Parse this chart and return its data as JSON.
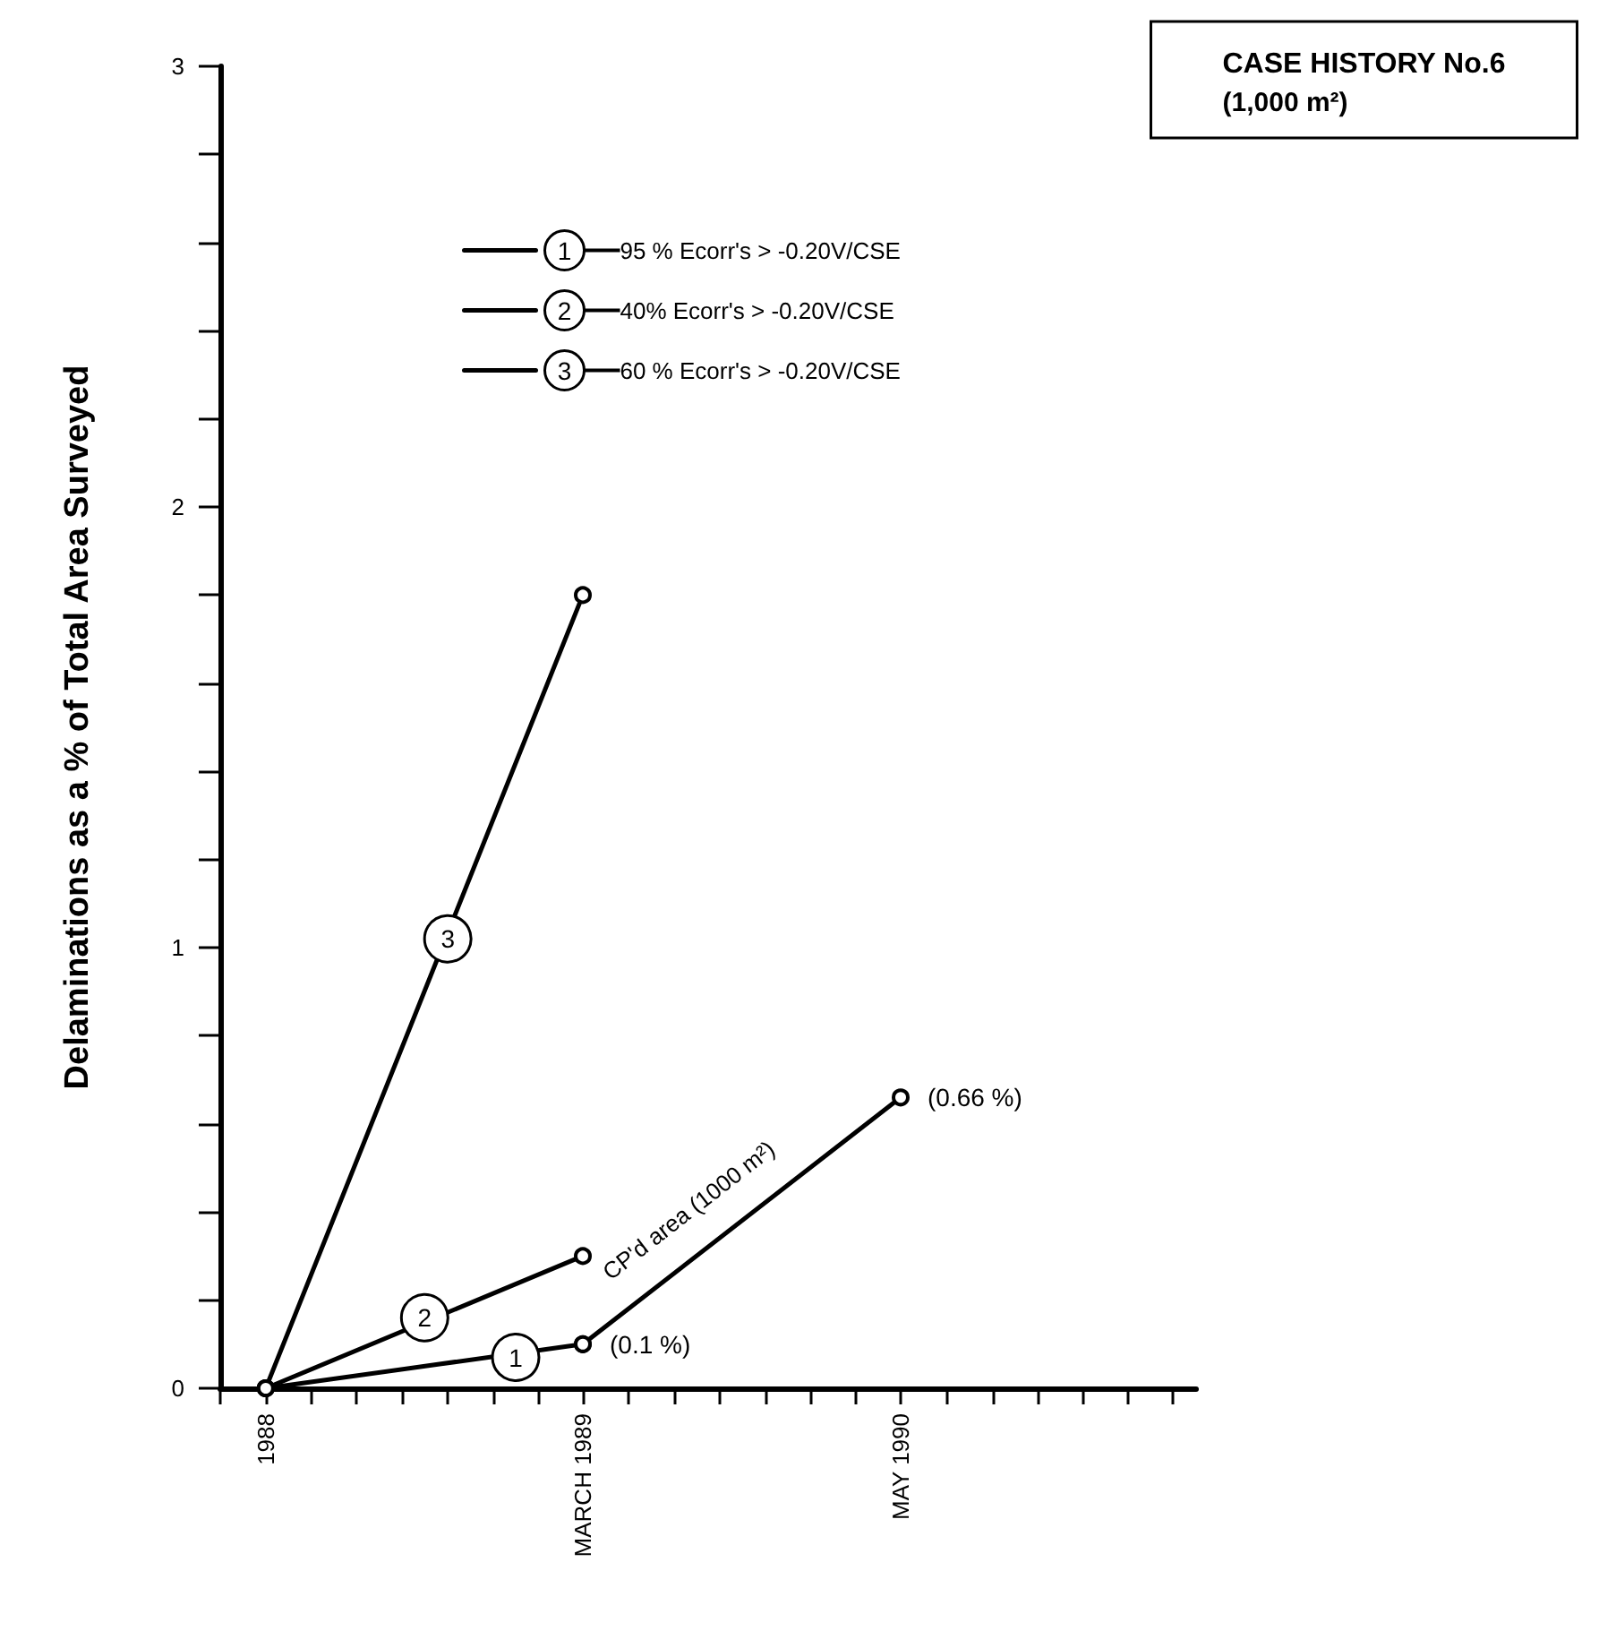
{
  "chart_data": {
    "type": "line",
    "title": "CASE HISTORY No.6",
    "subtitle": "(1,000 m²)",
    "ylabel": "Delaminations as a % of Total Area Surveyed",
    "series": [
      {
        "name": "95 % Ecorr's > -0.20V/CSE",
        "color": "#000000",
        "x": [
          "1988-01",
          "1989-03"
        ],
        "values": [
          0,
          0.1
        ]
      },
      {
        "name": "40% Ecorr's > -0.20V/CSE",
        "color": "#000000",
        "x": [
          "1988-01",
          "1989-03"
        ],
        "values": [
          0,
          0.3
        ]
      },
      {
        "name": "60 % Ecorr's > -0.20V/CSE",
        "color": "#000000",
        "x": [
          "1988-01",
          "1989-03"
        ],
        "values": [
          0,
          1.8
        ]
      },
      {
        "color": "#000000",
        "x": [
          "1989-03",
          "1990-05"
        ],
        "values": [
          0.1,
          0.66
        ],
        "value_labels": [
          "(0.1 %)",
          "(0.66 %)"
        ]
      }
    ],
    "annotations": [
      {
        "text": "1",
        "x": "1988-12",
        "y": 0.07
      },
      {
        "text": "2",
        "x": "1988-08",
        "y": 0.16
      },
      {
        "text": "3",
        "x": "1988-09",
        "y": 1.02
      },
      "CP'd area (1000 m²)"
    ],
    "xlim": [
      "1987-11",
      "1991-06"
    ],
    "xticks": [
      {
        "value": "1987-11",
        "label": null
      },
      {
        "value": "1988-01",
        "label": "1988"
      },
      {
        "value": "1988-03",
        "label": null
      },
      {
        "value": "1988-05",
        "label": null
      },
      {
        "value": "1988-07",
        "label": null
      },
      {
        "value": "1988-09",
        "label": null
      },
      {
        "value": "1988-11",
        "label": null
      },
      {
        "value": "1989-01",
        "label": null
      },
      {
        "value": "1989-03",
        "label": "MARCH 1989"
      },
      {
        "value": "1989-05",
        "label": null
      },
      {
        "value": "1989-07",
        "label": null
      },
      {
        "value": "1989-09",
        "label": null
      },
      {
        "value": "1989-11",
        "label": null
      },
      {
        "value": "1990-01",
        "label": null
      },
      {
        "value": "1990-03",
        "label": null
      },
      {
        "value": "1990-05",
        "label": "MAY 1990"
      },
      {
        "value": "1990-07",
        "label": null
      },
      {
        "value": "1990-09",
        "label": null
      },
      {
        "value": "1990-11",
        "label": null
      },
      {
        "value": "1991-01",
        "label": null
      },
      {
        "value": "1991-03",
        "label": null
      },
      {
        "value": "1991-05",
        "label": null
      }
    ],
    "ylim": [
      0,
      3
    ],
    "yticks": [
      0,
      {
        "value": 0.2,
        "label": null
      },
      {
        "value": 0.4,
        "label": null
      },
      {
        "value": 0.6,
        "label": null
      },
      {
        "value": 0.8,
        "label": null
      },
      1,
      {
        "value": 1.2,
        "label": null
      },
      {
        "value": 1.4,
        "label": null
      },
      {
        "value": 1.6,
        "label": null
      },
      {
        "value": 1.8,
        "label": null
      },
      2,
      {
        "value": 2.2,
        "label": null
      },
      {
        "value": 2.4,
        "label": null
      },
      {
        "value": 2.6,
        "label": null
      },
      {
        "value": 2.8,
        "label": null
      },
      3
    ],
    "grid": false,
    "legend": "top",
    "marker": "circle",
    "line_style": "solid"
  }
}
